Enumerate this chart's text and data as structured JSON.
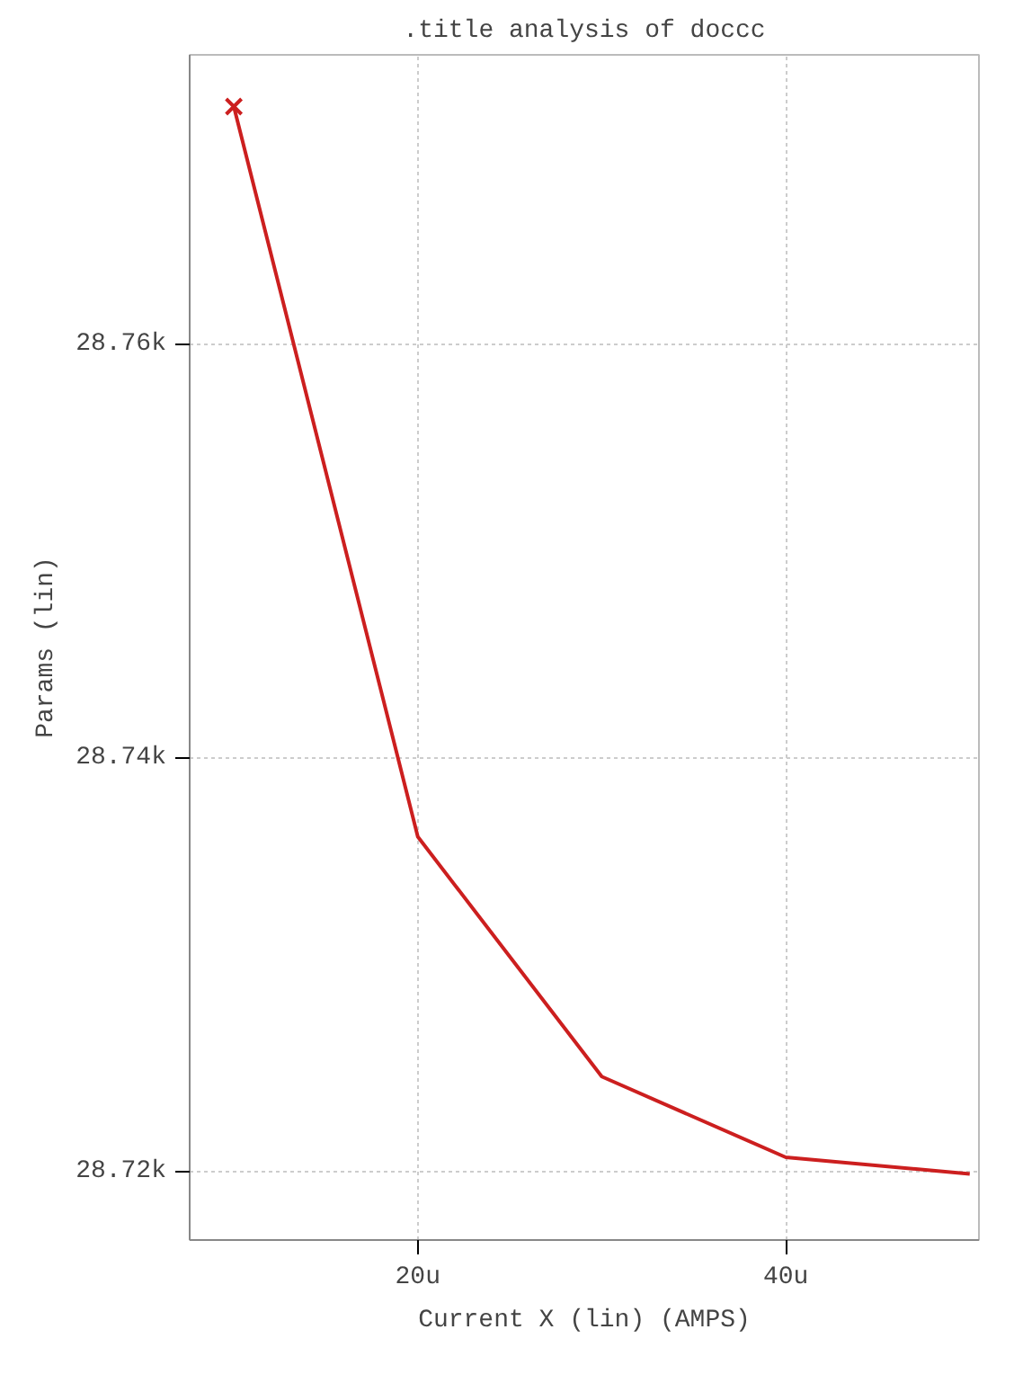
{
  "chart_data": {
    "type": "line",
    "title": ".title analysis of doccc",
    "xlabel": "Current X (lin) (AMPS)",
    "ylabel": "Params (lin)",
    "x": [
      10,
      20,
      30,
      40,
      50
    ],
    "series": [
      {
        "color": "#cc1f1f",
        "values": [
          28771.5,
          28736.2,
          28724.6,
          28720.7,
          28719.9
        ],
        "marker": "none",
        "line_style": "solid"
      },
      {
        "type": "scatter",
        "color": "#cc1f1f",
        "x": [
          10
        ],
        "values": [
          28771.5
        ],
        "marker": "cross"
      }
    ],
    "xlim": [
      7.6,
      50.5
    ],
    "ylim": [
      28716.7,
      28774
    ],
    "xticks": [
      {
        "value": 20,
        "label": "20u"
      },
      {
        "value": 40,
        "label": "40u"
      }
    ],
    "yticks": [
      {
        "value": 28720,
        "label": "28.72k"
      },
      {
        "value": 28740,
        "label": "28.74k"
      },
      {
        "value": 28760,
        "label": "28.76k"
      }
    ],
    "grid": true
  }
}
